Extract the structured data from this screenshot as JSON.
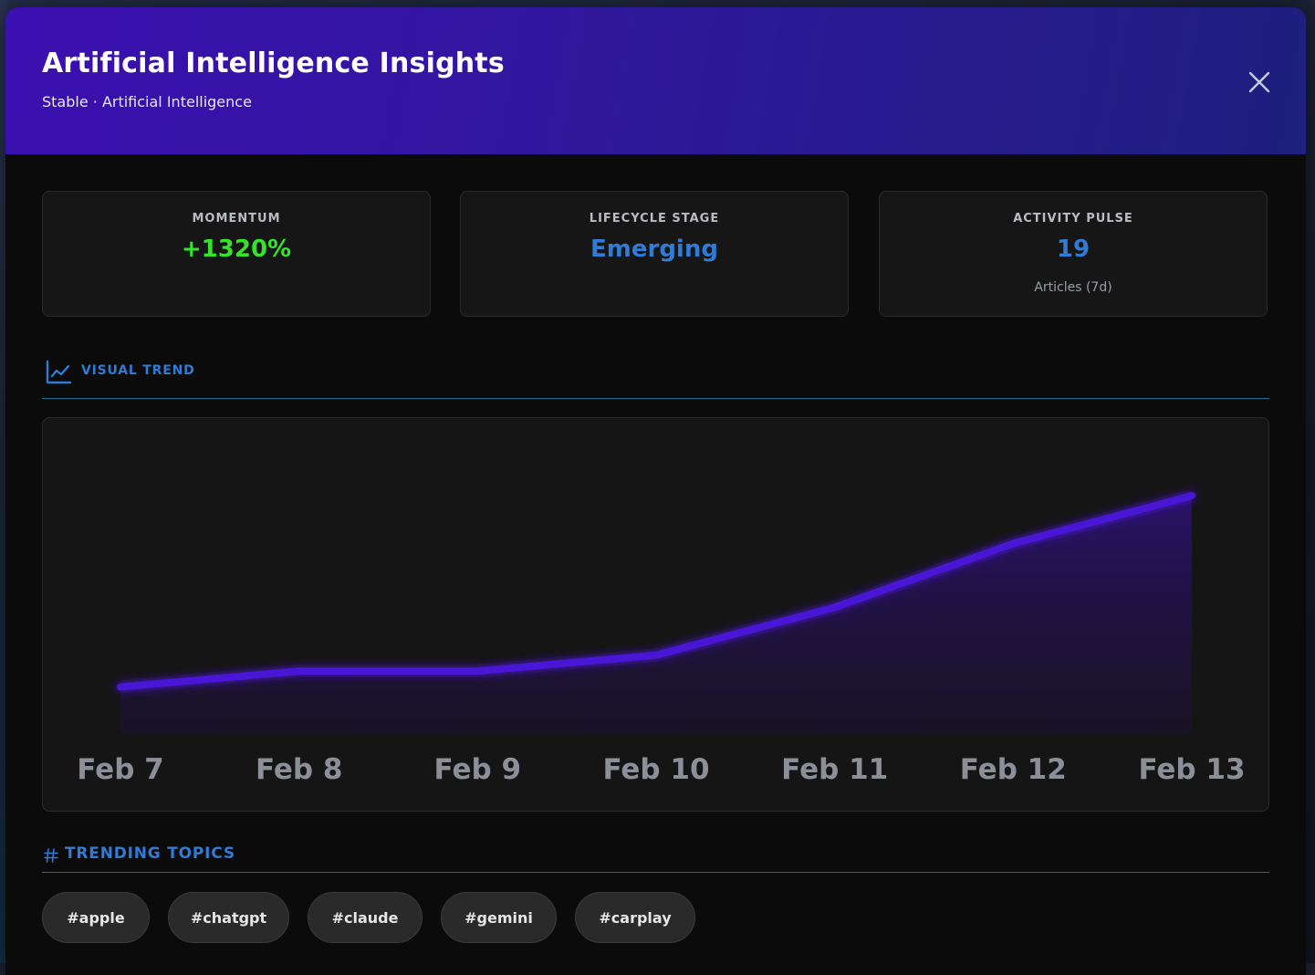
{
  "header": {
    "title": "Artificial Intelligence Insights",
    "subtitle": "Stable · Artificial Intelligence",
    "close_icon": "close-icon"
  },
  "stats": {
    "momentum": {
      "label": "MOMENTUM",
      "value": "+1320%",
      "color": "#35e22c"
    },
    "lifecycle": {
      "label": "LIFECYCLE STAGE",
      "value": "Emerging",
      "color": "#2f7bd6"
    },
    "activity": {
      "label": "ACTIVITY PULSE",
      "value": "19",
      "sub": "Articles (7d)",
      "color": "#2f7bd6"
    }
  },
  "visual_trend": {
    "title": "VISUAL TREND",
    "icon": "line-chart-icon"
  },
  "chart_data": {
    "type": "area",
    "categories": [
      "Feb 7",
      "Feb 8",
      "Feb 9",
      "Feb 10",
      "Feb 11",
      "Feb 12",
      "Feb 13"
    ],
    "values": [
      1,
      2,
      2,
      3,
      6,
      10,
      13
    ],
    "ylim": [
      0,
      13
    ],
    "grid": false,
    "line_color": "#4a14d6"
  },
  "trending_topics": {
    "title": "TRENDING TOPICS",
    "icon": "hash-icon",
    "tags": [
      "#apple",
      "#chatgpt",
      "#claude",
      "#gemini",
      "#carplay"
    ]
  }
}
